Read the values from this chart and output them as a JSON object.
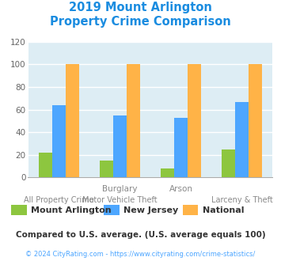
{
  "title_line1": "2019 Mount Arlington",
  "title_line2": "Property Crime Comparison",
  "title_color": "#1a8ce0",
  "mount_arlington": [
    22,
    15,
    8,
    25
  ],
  "new_jersey": [
    64,
    55,
    53,
    67
  ],
  "national": [
    100,
    100,
    100,
    100
  ],
  "mount_arlington_color": "#8dc63f",
  "new_jersey_color": "#4da6ff",
  "national_color": "#ffb347",
  "ylim": [
    0,
    120
  ],
  "yticks": [
    0,
    20,
    40,
    60,
    80,
    100,
    120
  ],
  "plot_bg_color": "#ddedf4",
  "grid_color": "#ffffff",
  "legend_labels": [
    "Mount Arlington",
    "New Jersey",
    "National"
  ],
  "footer_text": "Compared to U.S. average. (U.S. average equals 100)",
  "footer_color": "#333333",
  "copyright_text": "© 2024 CityRating.com - https://www.cityrating.com/crime-statistics/",
  "copyright_color": "#4da6ff",
  "bar_width": 0.22,
  "top_labels": [
    "",
    "Burglary",
    "Arson",
    ""
  ],
  "bottom_labels": [
    "All Property Crime",
    "Motor Vehicle Theft",
    "",
    "Larceny & Theft"
  ],
  "label_color": "#888888"
}
